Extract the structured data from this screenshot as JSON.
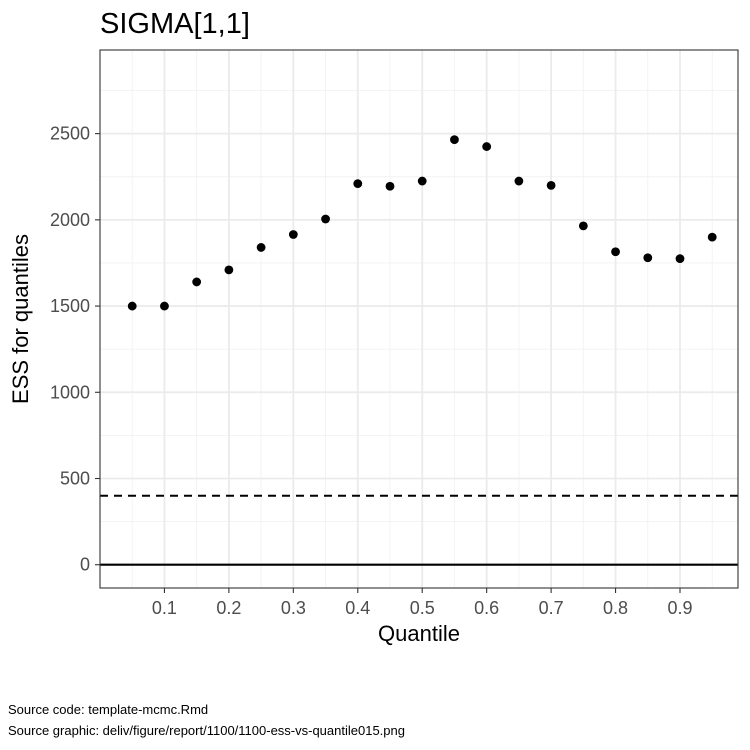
{
  "chart_data": {
    "type": "scatter",
    "title": "SIGMA[1,1]",
    "xlabel": "Quantile",
    "ylabel": "ESS for quantiles",
    "x": [
      0.05,
      0.1,
      0.15,
      0.2,
      0.25,
      0.3,
      0.35,
      0.4,
      0.45,
      0.5,
      0.55,
      0.6,
      0.65,
      0.7,
      0.75,
      0.8,
      0.85,
      0.9,
      0.95
    ],
    "y": [
      1500,
      1500,
      1640,
      1710,
      1840,
      1915,
      2005,
      2210,
      2195,
      2225,
      2465,
      2425,
      2225,
      2200,
      1965,
      1815,
      1780,
      1775,
      1900
    ],
    "xlim": [
      0.0,
      0.99
    ],
    "ylim": [
      -135,
      2985
    ],
    "x_ticks": [
      0.1,
      0.2,
      0.3,
      0.4,
      0.5,
      0.6,
      0.7,
      0.8,
      0.9
    ],
    "x_tick_labels": [
      "0.1",
      "0.2",
      "0.3",
      "0.4",
      "0.5",
      "0.6",
      "0.7",
      "0.8",
      "0.9"
    ],
    "y_ticks": [
      0,
      500,
      1000,
      1500,
      2000,
      2500
    ],
    "y_tick_labels": [
      "0",
      "500",
      "1000",
      "1500",
      "2000",
      "2500"
    ],
    "reference_lines": [
      {
        "y": 0,
        "style": "solid"
      },
      {
        "y": 400,
        "style": "dashed"
      }
    ],
    "grid": true,
    "legend": "none"
  },
  "captions": {
    "source_code": "Source code: template-mcmc.Rmd",
    "source_graphic": "Source graphic: deliv/figure/report/1100/1100-ess-vs-quantile015.png"
  }
}
